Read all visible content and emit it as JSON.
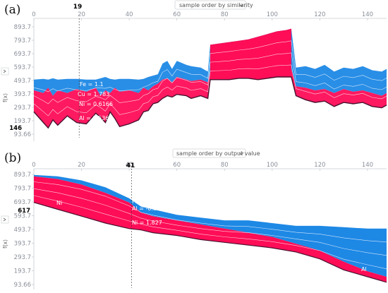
{
  "colors": {
    "positive": "#ff0d57",
    "negative": "#1e88e5",
    "dark": "#4a1030",
    "axis": "#c7cbd1",
    "text": "#8a8f98"
  },
  "chart_data": [
    {
      "type": "area",
      "panel": "(a)",
      "dropdown": "sample order by similarity",
      "x_ticks": [
        "0",
        "20",
        "40",
        "60",
        "80",
        "100",
        "120",
        "140"
      ],
      "y_ticks": [
        "893.7",
        "793.7",
        "693.7",
        "593.7",
        "493.7",
        "393.7",
        "293.7",
        "193.7",
        "93.66"
      ],
      "y_axis_label": "f(x)",
      "xlim": [
        0,
        148
      ],
      "ylim": [
        93.66,
        893.7
      ],
      "highlight_x": "19",
      "highlight_y": "146",
      "feature_labels": [
        "Fe = 1.1",
        "Cu = 1.783",
        "Ni = 0.6166",
        "Al = 1.536"
      ],
      "series": [
        {
          "name": "upper",
          "x": [
            0,
            4,
            6,
            8,
            10,
            14,
            18,
            22,
            26,
            28,
            30,
            32,
            34,
            36,
            40,
            44,
            46,
            48,
            50,
            52,
            54,
            56,
            58,
            60,
            64,
            66,
            70,
            73,
            74,
            78,
            82,
            86,
            90,
            94,
            98,
            102,
            106,
            108,
            110,
            114,
            118,
            122,
            126,
            130,
            134,
            138,
            142,
            146,
            148
          ],
          "values": [
            500,
            505,
            500,
            510,
            500,
            505,
            505,
            500,
            500,
            510,
            520,
            505,
            500,
            505,
            505,
            500,
            505,
            520,
            530,
            540,
            620,
            640,
            580,
            640,
            610,
            600,
            590,
            560,
            760,
            770,
            780,
            790,
            800,
            820,
            840,
            860,
            870,
            880,
            590,
            600,
            580,
            610,
            560,
            590,
            580,
            600,
            570,
            560,
            580
          ]
        },
        {
          "name": "base",
          "x": [
            0,
            4,
            6,
            8,
            10,
            14,
            18,
            22,
            26,
            28,
            30,
            32,
            34,
            36,
            40,
            44,
            46,
            48,
            50,
            52,
            54,
            56,
            58,
            60,
            64,
            66,
            70,
            73,
            74,
            78,
            82,
            86,
            90,
            94,
            98,
            102,
            106,
            108,
            110,
            114,
            118,
            122,
            126,
            130,
            134,
            138,
            142,
            146,
            148
          ],
          "values": [
            420,
            400,
            440,
            380,
            420,
            400,
            430,
            410,
            440,
            380,
            420,
            400,
            440,
            410,
            420,
            400,
            440,
            420,
            450,
            470,
            500,
            510,
            480,
            520,
            500,
            490,
            500,
            480,
            560,
            550,
            560,
            560,
            570,
            560,
            570,
            580,
            580,
            580,
            450,
            440,
            420,
            430,
            400,
            430,
            410,
            420,
            400,
            380,
            400
          ]
        },
        {
          "name": "lower",
          "x": [
            0,
            4,
            6,
            8,
            10,
            14,
            18,
            22,
            26,
            28,
            30,
            32,
            34,
            36,
            40,
            44,
            46,
            48,
            50,
            52,
            54,
            56,
            58,
            60,
            64,
            66,
            70,
            73,
            74,
            78,
            82,
            86,
            90,
            94,
            98,
            102,
            106,
            108,
            110,
            114,
            118,
            122,
            126,
            130,
            134,
            138,
            142,
            146,
            148
          ],
          "values": [
            260,
            180,
            140,
            200,
            160,
            230,
            180,
            170,
            250,
            220,
            180,
            260,
            210,
            150,
            170,
            200,
            260,
            270,
            320,
            330,
            360,
            380,
            370,
            390,
            380,
            360,
            380,
            360,
            500,
            500,
            500,
            510,
            510,
            500,
            510,
            520,
            520,
            520,
            380,
            350,
            330,
            340,
            300,
            330,
            320,
            330,
            300,
            290,
            310
          ]
        }
      ]
    },
    {
      "type": "area",
      "panel": "(b)",
      "dropdown": "sample order by output value",
      "x_ticks": [
        "0",
        "20",
        "40",
        "60",
        "80",
        "100",
        "120",
        "140"
      ],
      "y_ticks": [
        "893.7",
        "793.7",
        "693.7",
        "593.7",
        "493.7",
        "393.7",
        "293.7",
        "193.7",
        "93.66"
      ],
      "y_axis_label": "f(x)",
      "xlim": [
        0,
        148
      ],
      "ylim": [
        93.66,
        893.7
      ],
      "highlight_x": "41",
      "highlight_y": "617",
      "feature_labels": [
        "Fe = 1.746",
        "Al = -0.8405",
        "Ni = 1.827",
        "Cu = 1.015"
      ],
      "region_labels": [
        "Ni",
        "Al"
      ],
      "series": [
        {
          "name": "upper",
          "x": [
            0,
            10,
            20,
            30,
            40,
            45,
            50,
            60,
            70,
            80,
            90,
            100,
            110,
            120,
            130,
            140,
            148
          ],
          "values": [
            890,
            880,
            850,
            800,
            720,
            660,
            640,
            600,
            580,
            560,
            560,
            540,
            520,
            520,
            510,
            500,
            500
          ]
        },
        {
          "name": "base",
          "x": [
            0,
            10,
            20,
            30,
            40,
            45,
            50,
            60,
            70,
            80,
            90,
            100,
            110,
            120,
            130,
            140,
            148
          ],
          "values": [
            880,
            860,
            820,
            760,
            690,
            617,
            590,
            560,
            530,
            500,
            470,
            440,
            390,
            340,
            260,
            190,
            150
          ]
        },
        {
          "name": "lower",
          "x": [
            0,
            10,
            20,
            30,
            40,
            45,
            50,
            60,
            70,
            80,
            90,
            100,
            110,
            120,
            130,
            140,
            148
          ],
          "values": [
            690,
            640,
            590,
            540,
            500,
            490,
            470,
            450,
            420,
            400,
            380,
            360,
            330,
            280,
            200,
            150,
            110
          ]
        }
      ]
    }
  ]
}
